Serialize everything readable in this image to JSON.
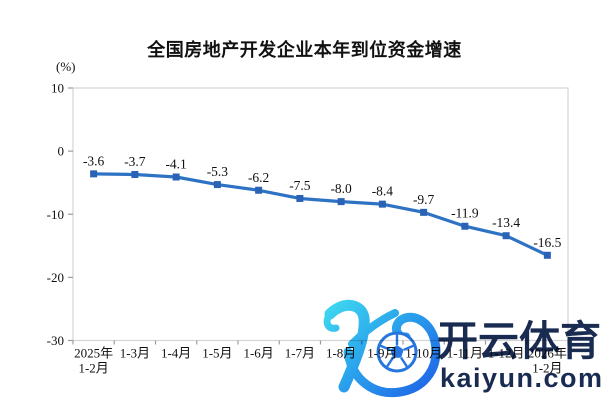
{
  "chart_data": {
    "type": "line",
    "title": "全国房地产开发企业本年到位资金增速",
    "unit_label": "(%)",
    "categories": [
      "2025年\n1-2月",
      "1-3月",
      "1-4月",
      "1-5月",
      "1-6月",
      "1-7月",
      "1-8月",
      "1-9月",
      "1-10月",
      "1-11月",
      "1-12月",
      "2026年\n1-2月"
    ],
    "values": [
      -3.6,
      -3.7,
      -4.1,
      -5.3,
      -6.2,
      -7.5,
      -8.0,
      -8.4,
      -9.7,
      -11.9,
      -13.4,
      -16.5
    ],
    "xlabel": "",
    "ylabel": "(%)",
    "ylim": [
      -30,
      10
    ],
    "y_ticks": [
      10,
      0,
      -10,
      -20,
      -30
    ],
    "grid": false,
    "legend": "none",
    "line_color": "#2E72C4",
    "marker_color": "#2A63B5",
    "axis_border_color": "#D4D4D4",
    "tick_mark_color": "#9C9C9C"
  },
  "watermark": {
    "brand_cn": "开云体育",
    "brand_domain": "kaiyun.com",
    "logo_icon": "kaiyun-k-soccer-ball-logo",
    "navy": "#1A2B52",
    "cyan": "#3ED9F0",
    "blue": "#1E63E6",
    "ball_blue": "#2776E0"
  }
}
